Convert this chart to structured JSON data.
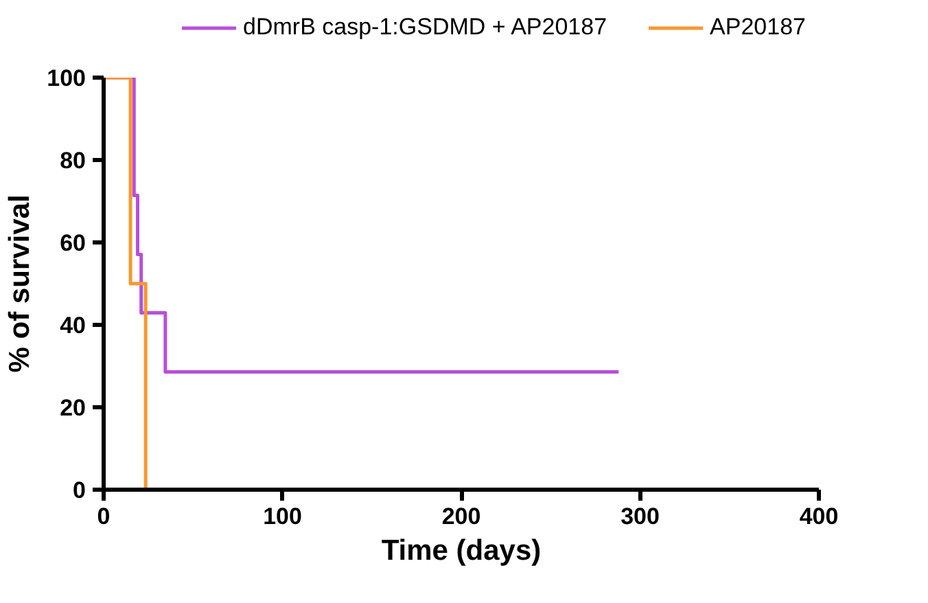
{
  "chart_data": {
    "type": "step",
    "xlabel": "Time (days)",
    "ylabel": "% of survival",
    "xlim": [
      0,
      400
    ],
    "xticks": [
      0,
      100,
      200,
      300,
      400
    ],
    "ylim": [
      0,
      100
    ],
    "yticks": [
      0,
      20,
      40,
      60,
      80,
      100
    ],
    "grid": false,
    "legend": "top",
    "line_style": "solid",
    "series": [
      {
        "name": "dDmrB casp-1:GSDMD + AP20187",
        "color": "#b84fdb",
        "x": [
          0,
          17,
          19,
          21,
          34.5,
          288
        ],
        "values": [
          100,
          71.4,
          57.1,
          42.9,
          28.6,
          28.6
        ]
      },
      {
        "name": "AP20187",
        "color": "#f7982f",
        "x": [
          0,
          15,
          23.5
        ],
        "values": [
          100,
          50,
          0
        ]
      }
    ]
  }
}
